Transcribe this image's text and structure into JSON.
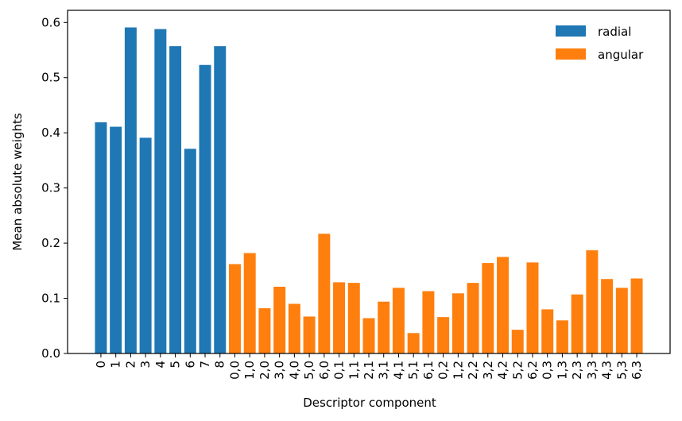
{
  "chart_data": {
    "type": "bar",
    "xlabel": "Descriptor component",
    "ylabel": "Mean absolute weights",
    "categories": [
      "0",
      "1",
      "2",
      "3",
      "4",
      "5",
      "6",
      "7",
      "8",
      "0,0",
      "1,0",
      "2,0",
      "3,0",
      "4,0",
      "5,0",
      "6,0",
      "0,1",
      "1,1",
      "2,1",
      "3,1",
      "4,1",
      "5,1",
      "6,1",
      "0,2",
      "1,2",
      "2,2",
      "3,2",
      "4,2",
      "5,2",
      "6,2",
      "0,3",
      "1,3",
      "2,3",
      "3,3",
      "4,3",
      "5,3",
      "6,3"
    ],
    "series": [
      {
        "name": "radial",
        "color": "#1f77b4",
        "values": [
          0.419,
          0.411,
          0.591,
          0.391,
          0.588,
          0.557,
          0.371,
          0.523,
          0.557,
          null,
          null,
          null,
          null,
          null,
          null,
          null,
          null,
          null,
          null,
          null,
          null,
          null,
          null,
          null,
          null,
          null,
          null,
          null,
          null,
          null,
          null,
          null,
          null,
          null,
          null,
          null,
          null
        ]
      },
      {
        "name": "angular",
        "color": "#ff7f0e",
        "values": [
          null,
          null,
          null,
          null,
          null,
          null,
          null,
          null,
          null,
          0.162,
          0.182,
          0.082,
          0.121,
          0.09,
          0.067,
          0.217,
          0.129,
          0.128,
          0.064,
          0.094,
          0.119,
          0.037,
          0.113,
          0.066,
          0.109,
          0.128,
          0.164,
          0.175,
          0.043,
          0.165,
          0.08,
          0.06,
          0.107,
          0.187,
          0.135,
          0.119,
          0.136
        ]
      }
    ],
    "ylim": [
      0,
      0.622
    ],
    "yticks": [
      {
        "value": 0,
        "label": "0.0"
      },
      0.1,
      0.2,
      0.3,
      0.4,
      0.5,
      0.6
    ],
    "legend": "upper right"
  }
}
